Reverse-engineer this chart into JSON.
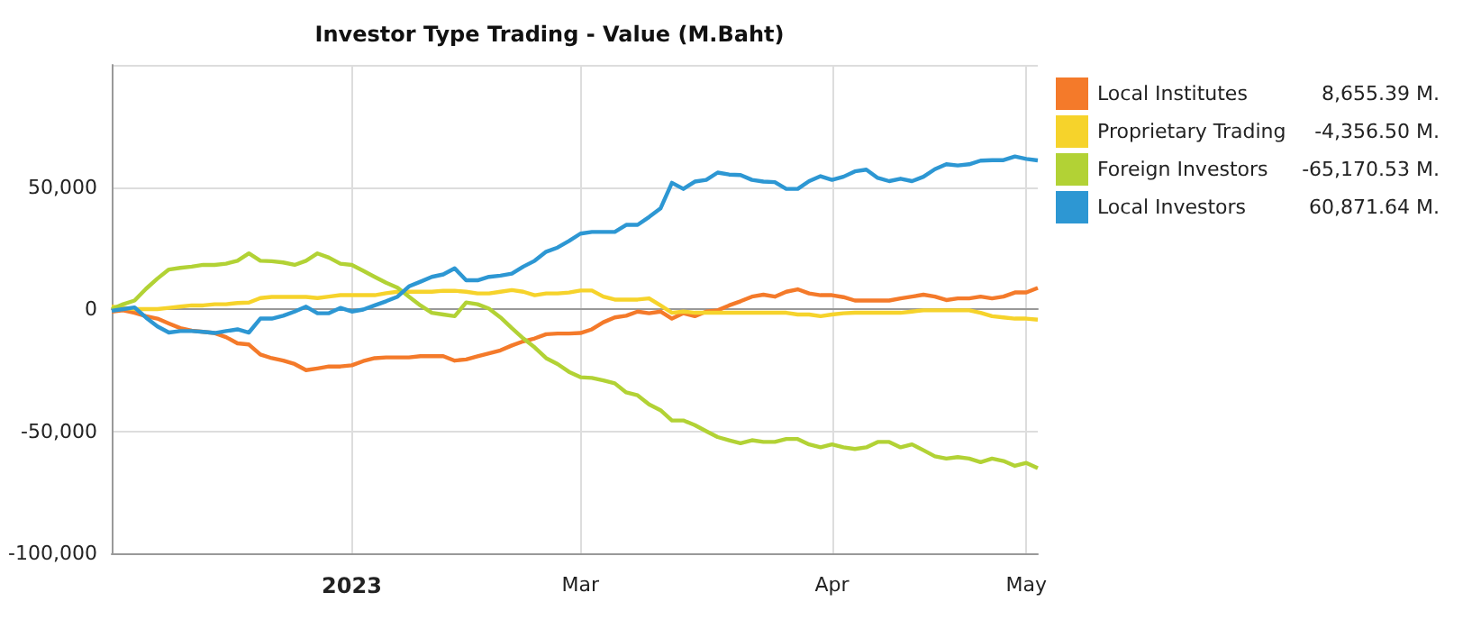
{
  "chart_data": {
    "type": "line",
    "title": "Investor Type Trading - Value (M.Baht)",
    "categories": [
      null,
      null,
      null,
      null,
      null,
      null,
      null,
      null,
      null,
      null,
      null,
      null,
      null,
      null,
      null,
      null,
      null,
      null,
      null,
      null,
      null,
      "2023",
      null,
      null,
      null,
      null,
      null,
      null,
      null,
      null,
      null,
      null,
      null,
      null,
      null,
      null,
      null,
      null,
      null,
      null,
      null,
      "Mar",
      null,
      null,
      null,
      null,
      null,
      null,
      null,
      null,
      null,
      null,
      null,
      null,
      null,
      null,
      null,
      null,
      null,
      null,
      null,
      null,
      null,
      "Apr",
      null,
      null,
      null,
      null,
      null,
      null,
      null,
      null,
      null,
      null,
      null,
      null,
      null,
      null,
      null,
      null,
      "May",
      null
    ],
    "series": [
      {
        "name": "Local Institutes",
        "color": "#f47a2a",
        "values": [
          -1000,
          -500,
          -1500,
          -2900,
          -3900,
          -5900,
          -7800,
          -8800,
          -9300,
          -9800,
          -11500,
          -14000,
          -14500,
          -18600,
          -20100,
          -21100,
          -22500,
          -25000,
          -24300,
          -23500,
          -23500,
          -23000,
          -21300,
          -20100,
          -19800,
          -19800,
          -19800,
          -19300,
          -19300,
          -19300,
          -21100,
          -20600,
          -19300,
          -18100,
          -16900,
          -14900,
          -13200,
          -12000,
          -10300,
          -10000,
          -10000,
          -9800,
          -8300,
          -5400,
          -3400,
          -2700,
          -1000,
          -1700,
          -1000,
          -3900,
          -1700,
          -2900,
          -1000,
          -500,
          1500,
          3200,
          5100,
          5900,
          5100,
          7100,
          8100,
          6400,
          5700,
          5700,
          4900,
          3500,
          3500,
          3500,
          3500,
          4400,
          5100,
          5900,
          5100,
          3700,
          4400,
          4400,
          5100,
          4400,
          5100,
          6800,
          6800,
          8655.39
        ]
      },
      {
        "name": "Proprietary Trading",
        "color": "#f6d32b",
        "values": [
          1000,
          500,
          0,
          0,
          0,
          500,
          1000,
          1500,
          1500,
          2000,
          2000,
          2500,
          2700,
          4500,
          5000,
          5000,
          5000,
          5000,
          4500,
          5100,
          5700,
          5700,
          5700,
          5700,
          6500,
          7100,
          7100,
          7100,
          7100,
          7500,
          7500,
          7100,
          6400,
          6400,
          7100,
          7800,
          7100,
          5700,
          6400,
          6400,
          6800,
          7600,
          7600,
          5100,
          3900,
          3900,
          3900,
          4400,
          1500,
          -1500,
          -1000,
          -1500,
          -1500,
          -1500,
          -1500,
          -1500,
          -1500,
          -1500,
          -1500,
          -1500,
          -2200,
          -2200,
          -2900,
          -2200,
          -1700,
          -1500,
          -1500,
          -1500,
          -1500,
          -1500,
          -1000,
          -500,
          -500,
          -500,
          -500,
          -500,
          -1500,
          -2900,
          -3400,
          -3900,
          -3900,
          -4356.5
        ]
      },
      {
        "name": "Foreign Investors",
        "color": "#b2d235",
        "values": [
          0,
          2000,
          3500,
          8300,
          12500,
          16200,
          16900,
          17400,
          18100,
          18100,
          18600,
          19800,
          22800,
          19800,
          19600,
          19100,
          18100,
          19800,
          22800,
          21100,
          18600,
          18100,
          15700,
          13200,
          10800,
          8800,
          5100,
          1500,
          -1500,
          -2200,
          -2900,
          2700,
          2000,
          200,
          -3400,
          -7800,
          -12000,
          -15700,
          -20100,
          -22500,
          -25700,
          -27900,
          -28200,
          -29200,
          -30400,
          -34100,
          -35300,
          -39000,
          -41400,
          -45600,
          -45600,
          -47500,
          -50000,
          -52400,
          -53700,
          -54900,
          -53700,
          -54400,
          -54400,
          -53200,
          -53200,
          -55400,
          -56600,
          -55400,
          -56600,
          -57300,
          -56600,
          -54400,
          -54400,
          -56600,
          -55400,
          -57800,
          -60300,
          -61200,
          -60600,
          -61200,
          -62700,
          -61200,
          -62200,
          -64200,
          -63000,
          -65170.53
        ]
      },
      {
        "name": "Local Investors",
        "color": "#2d97d3",
        "values": [
          -700,
          0,
          700,
          -3500,
          -7100,
          -9600,
          -9000,
          -9000,
          -9300,
          -9800,
          -9000,
          -8300,
          -9600,
          -3900,
          -3900,
          -2700,
          -1000,
          1000,
          -1700,
          -1700,
          500,
          -1000,
          -200,
          1500,
          3200,
          5100,
          9300,
          11200,
          13200,
          14200,
          16700,
          11800,
          11800,
          13200,
          13700,
          14500,
          17400,
          19800,
          23500,
          25200,
          27900,
          30900,
          31600,
          31600,
          31600,
          34500,
          34500,
          37700,
          41200,
          51700,
          49200,
          52200,
          52900,
          55900,
          55100,
          54900,
          52900,
          52200,
          52000,
          49200,
          49200,
          52400,
          54400,
          52900,
          54200,
          56400,
          57100,
          53700,
          52400,
          53400,
          52400,
          54200,
          57300,
          59300,
          58800,
          59300,
          60800,
          61000,
          61000,
          62500,
          61500,
          60871.64
        ]
      }
    ],
    "annotations": [
      "8,655.39 M.",
      "-4,356.50 M.",
      "-65,170.53 M.",
      "60,871.64 M."
    ],
    "ylim": [
      -100000,
      100000
    ],
    "yticks": [
      {
        "value": -100000,
        "label": "-100,000"
      },
      {
        "value": -50000,
        "label": "-50,000"
      },
      0,
      {
        "value": 50000,
        "label": "50,000"
      },
      {
        "value": 100000,
        "label": null
      }
    ],
    "grid": true,
    "legend": "right",
    "marker": "none",
    "line_style": "solid"
  }
}
